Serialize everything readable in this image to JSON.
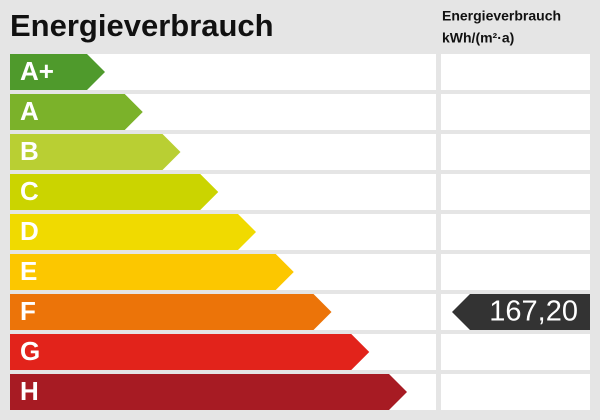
{
  "title": "Energieverbrauch",
  "unit_header": [
    "Energieverbrauch",
    "kWh/(m²·a)"
  ],
  "classes": [
    {
      "label": "A+",
      "color": "#4f9a2c"
    },
    {
      "label": "A",
      "color": "#7bb22a"
    },
    {
      "label": "B",
      "color": "#b9cf33"
    },
    {
      "label": "C",
      "color": "#cbd400"
    },
    {
      "label": "D",
      "color": "#f0da00"
    },
    {
      "label": "E",
      "color": "#fcc700"
    },
    {
      "label": "F",
      "color": "#ec7409"
    },
    {
      "label": "G",
      "color": "#e2231b"
    },
    {
      "label": "H",
      "color": "#a71b23"
    }
  ],
  "marker": {
    "class": "F",
    "text": "167,20",
    "color": "#333333"
  }
}
